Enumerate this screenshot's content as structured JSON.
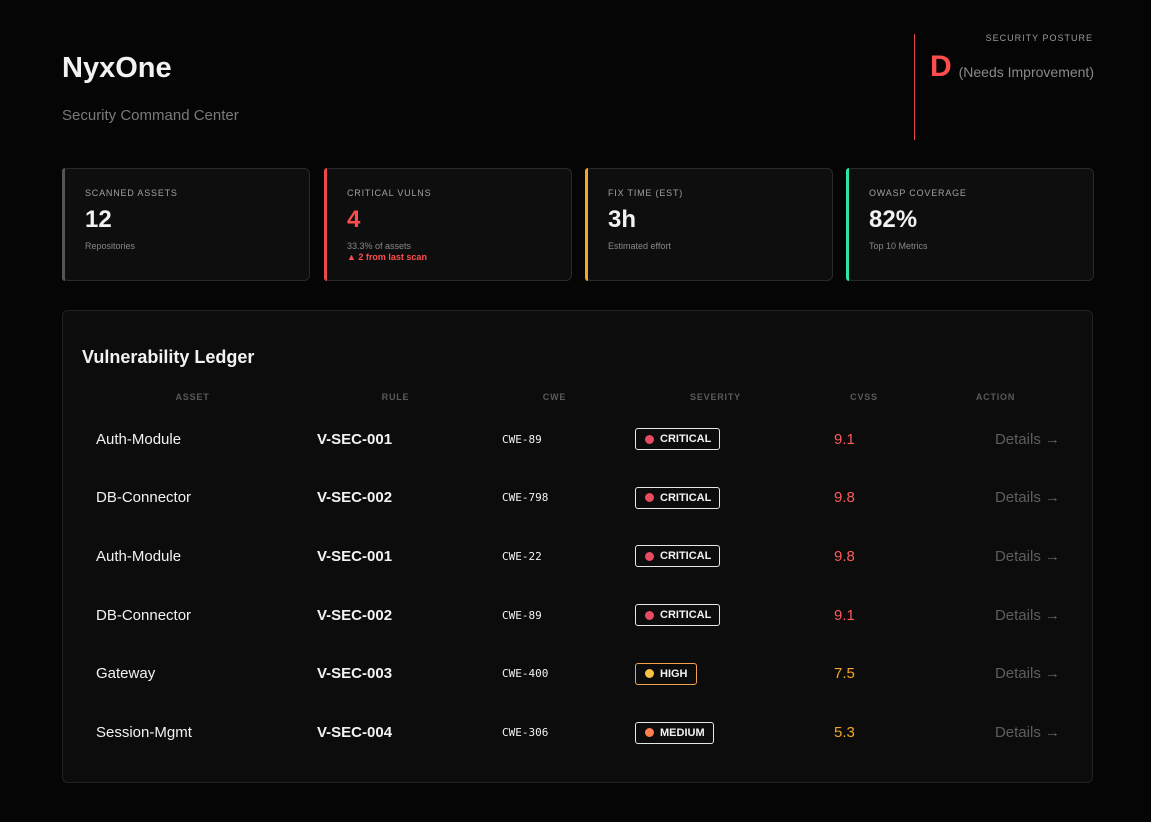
{
  "header": {
    "title": "NyxOne",
    "subtitle": "Security Command Center"
  },
  "posture": {
    "label": "SECURITY POSTURE",
    "grade": "D",
    "note": "(Needs Improvement)"
  },
  "stats": [
    {
      "label": "SCANNED ASSETS",
      "value": "12",
      "sub": "Repositories"
    },
    {
      "label": "CRITICAL VULNS",
      "value": "4",
      "sub": "33.3% of assets",
      "delta": "▲ 2 from last scan"
    },
    {
      "label": "FIX TIME (EST)",
      "value": "3h",
      "sub": "Estimated effort"
    },
    {
      "label": "OWASP COVERAGE",
      "value": "82%",
      "sub": "Top 10 Metrics"
    }
  ],
  "ledger": {
    "title": "Vulnerability Ledger",
    "columns": [
      "ASSET",
      "RULE",
      "CWE",
      "SEVERITY",
      "CVSS",
      "ACTION"
    ],
    "rows": [
      [
        "Auth-Module",
        "V-SEC-001",
        "CWE-89",
        "CRITICAL",
        "9.1",
        "Details →"
      ],
      [
        "DB-Connector",
        "V-SEC-002",
        "CWE-798",
        "CRITICAL",
        "9.8",
        "Details →"
      ],
      [
        "Auth-Module",
        "V-SEC-001",
        "CWE-22",
        "CRITICAL",
        "9.8",
        "Details →"
      ],
      [
        "DB-Connector",
        "V-SEC-002",
        "CWE-89",
        "CRITICAL",
        "9.1",
        "Details →"
      ],
      [
        "Gateway",
        "V-SEC-003",
        "CWE-400",
        "HIGH",
        "7.5",
        "Details →"
      ],
      [
        "Session-Mgmt",
        "V-SEC-004",
        "CWE-306",
        "MEDIUM",
        "5.3",
        "Details →"
      ]
    ]
  }
}
